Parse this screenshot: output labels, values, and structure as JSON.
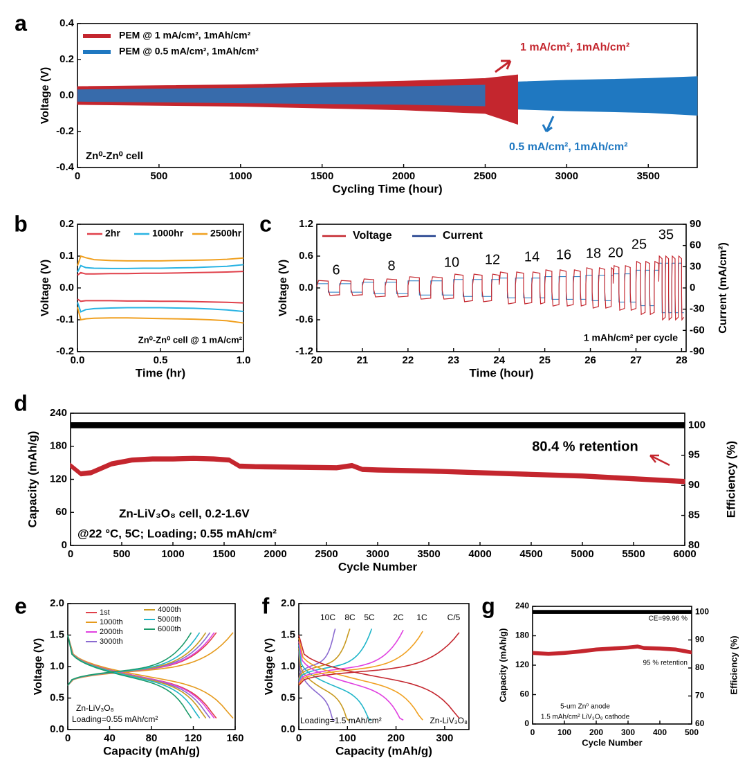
{
  "colors": {
    "red": "#c4262e",
    "blue": "#1f78c1",
    "cyan": "#29b3e3",
    "orange": "#f0a020",
    "black": "#000000",
    "rate_colors": [
      "#9b59b6",
      "#c89020",
      "#1fb5c9",
      "#e040e0",
      "#f0a020",
      "#c4262e"
    ],
    "cycle_colors": [
      "#e0404a",
      "#e59a1c",
      "#c89a20",
      "#1fb5c9",
      "#e040e0",
      "#1a9a6a",
      "#8a6ad0"
    ]
  },
  "chart_data": [
    {
      "panel": "a",
      "type": "line",
      "title": "",
      "xlabel": "Cycling Time (hour)",
      "ylabel": "Voltage (V)",
      "xlim": [
        0,
        3800
      ],
      "ylim": [
        -0.4,
        0.4
      ],
      "xticks": [
        0,
        500,
        1000,
        1500,
        2000,
        2500,
        3000,
        3500
      ],
      "yticks": [
        -0.4,
        -0.2,
        0.0,
        0.2,
        0.4
      ],
      "xtick_labels": [
        "0",
        "500",
        "1000",
        "1500",
        "2000",
        "2500",
        "3000",
        "3500"
      ],
      "ytick_labels": [
        "-0.4",
        "-0.2",
        "0.0",
        "0.2",
        "0.4"
      ],
      "series": [
        {
          "name": "PEM @ 1 mA/cm², 1mAh/cm²",
          "color": "#c4262e",
          "x": [
            0,
            500,
            1000,
            1500,
            2000,
            2500,
            2700
          ],
          "upper": [
            0.05,
            0.055,
            0.06,
            0.07,
            0.08,
            0.095,
            0.115
          ],
          "lower": [
            -0.05,
            -0.055,
            -0.06,
            -0.07,
            -0.08,
            -0.1,
            -0.16
          ]
        },
        {
          "name": "PEM @ 0.5 mA/cm², 1mAh/cm²",
          "color": "#1f78c1",
          "x": [
            0,
            500,
            1000,
            1500,
            2000,
            2500,
            3000,
            3500,
            3800
          ],
          "upper": [
            0.04,
            0.045,
            0.05,
            0.055,
            0.06,
            0.07,
            0.085,
            0.095,
            0.105
          ],
          "lower": [
            -0.04,
            -0.045,
            -0.05,
            -0.055,
            -0.06,
            -0.07,
            -0.085,
            -0.095,
            -0.11
          ]
        }
      ],
      "legend": [
        "PEM @ 1 mA/cm², 1mAh/cm²",
        "PEM @ 0.5 mA/cm², 1mAh/cm²"
      ],
      "annotations": [
        "1 mA/cm², 1mAh/cm²",
        "0.5 mA/cm², 1mAh/cm²",
        "Zn⁰-Zn⁰ cell"
      ]
    },
    {
      "panel": "b",
      "type": "line",
      "xlabel": "Time (hr)",
      "ylabel": "Voltage (V)",
      "xlim": [
        0,
        1.0
      ],
      "ylim": [
        -0.2,
        0.2
      ],
      "xticks": [
        0.0,
        0.5,
        1.0
      ],
      "xtick_labels": [
        "0.0",
        "0.5",
        "1.0"
      ],
      "yticks": [
        -0.2,
        -0.1,
        0.0,
        0.1,
        0.2
      ],
      "ytick_labels": [
        "-0.2",
        "-0.1",
        "0.0",
        "0.1",
        "0.2"
      ],
      "x": [
        0.0,
        0.02,
        0.05,
        0.1,
        0.2,
        0.3,
        0.4,
        0.5,
        0.6,
        0.7,
        0.8,
        0.9,
        1.0
      ],
      "series": [
        {
          "name": "2hr",
          "color": "#e0404a",
          "charge": [
            0.04,
            0.048,
            0.044,
            0.044,
            0.045,
            0.045,
            0.046,
            0.046,
            0.047,
            0.048,
            0.049,
            0.05,
            0.052
          ],
          "discharge": [
            -0.035,
            -0.042,
            -0.04,
            -0.04,
            -0.04,
            -0.041,
            -0.041,
            -0.042,
            -0.042,
            -0.043,
            -0.044,
            -0.045,
            -0.047
          ]
        },
        {
          "name": "1000hr",
          "color": "#29b3e3",
          "charge": [
            0.05,
            0.07,
            0.064,
            0.062,
            0.061,
            0.061,
            0.062,
            0.062,
            0.063,
            0.064,
            0.066,
            0.068,
            0.073
          ],
          "discharge": [
            -0.045,
            -0.075,
            -0.068,
            -0.065,
            -0.063,
            -0.062,
            -0.062,
            -0.062,
            -0.063,
            -0.064,
            -0.066,
            -0.069,
            -0.074
          ]
        },
        {
          "name": "2500hr",
          "color": "#f0a020",
          "charge": [
            0.07,
            0.1,
            0.095,
            0.089,
            0.086,
            0.085,
            0.085,
            0.085,
            0.086,
            0.087,
            0.088,
            0.09,
            0.094
          ],
          "discharge": [
            -0.06,
            -0.1,
            -0.097,
            -0.095,
            -0.094,
            -0.094,
            -0.095,
            -0.096,
            -0.097,
            -0.098,
            -0.1,
            -0.103,
            -0.11
          ]
        }
      ],
      "legend": [
        "2hr",
        "1000hr",
        "2500hr"
      ],
      "annotation": "Zn⁰-Zn⁰ cell @ 1 mA/cm²"
    },
    {
      "panel": "c",
      "type": "line",
      "xlabel": "Time (hour)",
      "ylabel": "Voltage (V)",
      "y2label": "Current (mA/cm²)",
      "xlim": [
        20,
        28.1
      ],
      "ylim": [
        -1.2,
        1.2
      ],
      "y2lim": [
        -90,
        90
      ],
      "xticks": [
        20,
        21,
        22,
        23,
        24,
        25,
        26,
        27,
        28
      ],
      "xtick_labels": [
        "20",
        "21",
        "22",
        "23",
        "24",
        "25",
        "26",
        "27",
        "28"
      ],
      "yticks": [
        -1.2,
        -0.6,
        0.0,
        0.6,
        1.2
      ],
      "ytick_labels": [
        "-1.2",
        "-0.6",
        "0.0",
        "0.6",
        "1.2"
      ],
      "y2ticks": [
        -90,
        -60,
        -30,
        0,
        30,
        60,
        90
      ],
      "y2tick_labels": [
        "-90",
        "-60",
        "-30",
        "0",
        "30",
        "60",
        "90"
      ],
      "segments": [
        {
          "current": 6,
          "start": 20.0,
          "end": 21.0,
          "voltage_amp": 0.14
        },
        {
          "current": 8,
          "start": 21.0,
          "end": 22.0,
          "voltage_amp": 0.17
        },
        {
          "current": 10,
          "start": 22.0,
          "end": 23.0,
          "voltage_amp": 0.21
        },
        {
          "current": 12,
          "start": 23.0,
          "end": 24.0,
          "voltage_amp": 0.26
        },
        {
          "current": 14,
          "start": 24.0,
          "end": 25.0,
          "voltage_amp": 0.3
        },
        {
          "current": 16,
          "start": 25.0,
          "end": 25.9,
          "voltage_amp": 0.34
        },
        {
          "current": 18,
          "start": 25.9,
          "end": 26.5,
          "voltage_amp": 0.38
        },
        {
          "current": 20,
          "start": 26.5,
          "end": 27.0,
          "voltage_amp": 0.42
        },
        {
          "current": 25,
          "start": 27.0,
          "end": 27.5,
          "voltage_amp": 0.5
        },
        {
          "current": 35,
          "start": 27.5,
          "end": 28.05,
          "voltage_amp": 0.6
        }
      ],
      "step_labels": [
        "6",
        "8",
        "10",
        "12",
        "14",
        "16",
        "18",
        "20",
        "25",
        "35"
      ],
      "legend": [
        "Voltage",
        "Current"
      ],
      "annotation": "1 mAh/cm²  per cycle"
    },
    {
      "panel": "d",
      "type": "scatter",
      "xlabel": "Cycle Number",
      "ylabel": "Capacity (mAh/g)",
      "y2label": "Efficiency (%)",
      "xlim": [
        0,
        6000
      ],
      "ylim": [
        0,
        240
      ],
      "y2lim": [
        80,
        102
      ],
      "xticks": [
        0,
        500,
        1000,
        1500,
        2000,
        2500,
        3000,
        3500,
        4000,
        4500,
        5000,
        5500,
        6000
      ],
      "xtick_labels": [
        "0",
        "500",
        "1000",
        "1500",
        "2000",
        "2500",
        "3000",
        "3500",
        "4000",
        "4500",
        "5000",
        "5500",
        "6000"
      ],
      "yticks": [
        0,
        60,
        120,
        180,
        240
      ],
      "ytick_labels": [
        "0",
        "60",
        "120",
        "180",
        "240"
      ],
      "y2ticks": [
        80,
        85,
        90,
        95,
        100
      ],
      "y2tick_labels": [
        "80",
        "85",
        "90",
        "95",
        "100"
      ],
      "capacity": {
        "x": [
          0,
          100,
          200,
          400,
          600,
          800,
          1000,
          1200,
          1400,
          1550,
          1650,
          1800,
          2200,
          2600,
          2750,
          2850,
          3000,
          3500,
          4000,
          4500,
          5000,
          5500,
          6000
        ],
        "y": [
          145,
          130,
          132,
          148,
          155,
          157,
          157,
          158,
          157,
          155,
          144,
          143,
          142,
          141,
          145,
          138,
          137,
          135,
          132,
          129,
          126,
          121,
          116
        ]
      },
      "efficiency": {
        "x": [
          0,
          6000
        ],
        "y": [
          100,
          100
        ]
      },
      "annotations": [
        "80.4 % retention",
        "Zn-LiV₃O₈ cell, 0.2-1.6V",
        "@22 °C, 5C; Loading; 0.55 mAh/cm²"
      ]
    },
    {
      "panel": "e",
      "type": "line",
      "xlabel": "Capacity (mAh/g)",
      "ylabel": "Voltage (V)",
      "xlim": [
        0,
        160
      ],
      "ylim": [
        0,
        2.0
      ],
      "xticks": [
        0,
        40,
        80,
        120,
        160
      ],
      "xtick_labels": [
        "0",
        "40",
        "80",
        "120",
        "160"
      ],
      "yticks": [
        0.0,
        0.5,
        1.0,
        1.5,
        2.0
      ],
      "ytick_labels": [
        "0.0",
        "0.5",
        "1.0",
        "1.5",
        "2.0"
      ],
      "series": [
        {
          "name": "1st",
          "color": "#e0404a",
          "cap": 142
        },
        {
          "name": "1000th",
          "color": "#e59a1c",
          "cap": 158
        },
        {
          "name": "2000th",
          "color": "#e040e0",
          "cap": 140
        },
        {
          "name": "3000th",
          "color": "#8a6ad0",
          "cap": 136
        },
        {
          "name": "4000th",
          "color": "#c89a20",
          "cap": 132
        },
        {
          "name": "5000th",
          "color": "#1fb5c9",
          "cap": 126
        },
        {
          "name": "6000th",
          "color": "#1a9a6a",
          "cap": 118
        }
      ],
      "annotations": [
        "Zn-LiV₃O₈",
        "Loading=0.55 mAh/cm²"
      ]
    },
    {
      "panel": "f",
      "type": "line",
      "xlabel": "Capacity (mAh/g)",
      "ylabel": "Voltage (V)",
      "xlim": [
        0,
        350
      ],
      "ylim": [
        0,
        2.0
      ],
      "xticks": [
        0,
        100,
        200,
        300
      ],
      "xtick_labels": [
        "0",
        "100",
        "200",
        "300"
      ],
      "yticks": [
        0.0,
        0.5,
        1.0,
        1.5,
        2.0
      ],
      "ytick_labels": [
        "0.0",
        "0.5",
        "1.0",
        "1.5",
        "2.0"
      ],
      "series": [
        {
          "name": "10C",
          "color": "#8a6ad0",
          "cap": 75
        },
        {
          "name": "8C",
          "color": "#c89a20",
          "cap": 105
        },
        {
          "name": "5C",
          "color": "#1fb5c9",
          "cap": 150
        },
        {
          "name": "2C",
          "color": "#e040e0",
          "cap": 215
        },
        {
          "name": "1C",
          "color": "#f0a020",
          "cap": 255
        },
        {
          "name": "C/5",
          "color": "#c4262e",
          "cap": 330
        }
      ],
      "annotations": [
        "Loading=1.5 mAh/cm²",
        "Zn-LiV₃O₈"
      ]
    },
    {
      "panel": "g",
      "type": "scatter",
      "xlabel": "Cycle Number",
      "ylabel": "Capacity (mAh/g)",
      "y2label": "Efficiency (%)",
      "xlim": [
        0,
        500
      ],
      "ylim": [
        0,
        240
      ],
      "y2lim": [
        60,
        102
      ],
      "xticks": [
        0,
        100,
        200,
        300,
        400,
        500
      ],
      "xtick_labels": [
        "0",
        "100",
        "200",
        "300",
        "400",
        "500"
      ],
      "yticks": [
        0,
        60,
        120,
        180,
        240
      ],
      "ytick_labels": [
        "0",
        "60",
        "120",
        "180",
        "240"
      ],
      "y2ticks": [
        60,
        70,
        80,
        90,
        100
      ],
      "y2tick_labels": [
        "60",
        "70",
        "80",
        "90",
        "100"
      ],
      "capacity": {
        "x": [
          0,
          50,
          100,
          150,
          200,
          250,
          300,
          330,
          350,
          400,
          450,
          500
        ],
        "y": [
          145,
          143,
          145,
          148,
          152,
          154,
          156,
          158,
          155,
          154,
          152,
          146
        ]
      },
      "efficiency": {
        "x": [
          0,
          500
        ],
        "y": [
          99.96,
          99.96
        ]
      },
      "annotations": [
        "CE=99.96 %",
        "95 % retention",
        "5-um Zn⁰ anode",
        "1.5 mAh/cm² LiV₃O₈ cathode"
      ]
    }
  ],
  "panel_letters": [
    "a",
    "b",
    "c",
    "d",
    "e",
    "f",
    "g"
  ]
}
